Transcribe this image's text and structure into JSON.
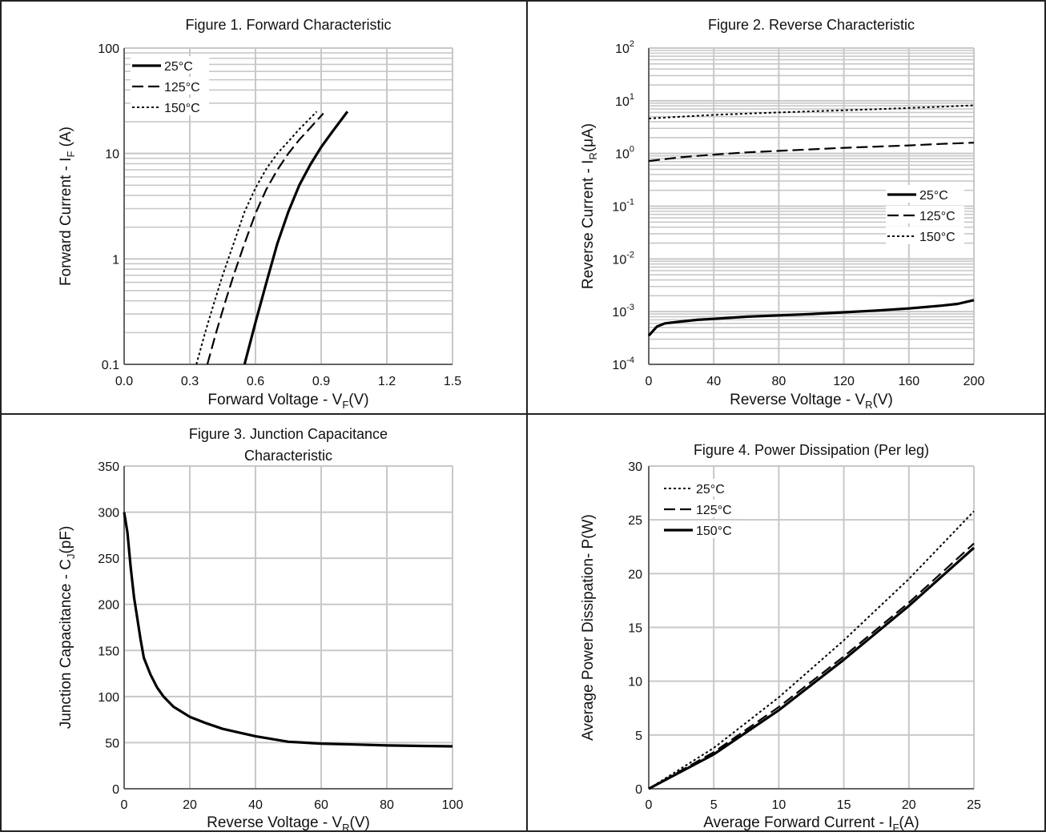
{
  "chart_data": [
    {
      "id": "fig1",
      "type": "line",
      "title": "Figure 1. Forward Characteristic",
      "xlabel": {
        "main": "Forward Voltage - V",
        "sub": "F",
        "tail": "(V)"
      },
      "ylabel": {
        "main": "Forward Current - I",
        "sub": "F",
        "tail": " (A)"
      },
      "xscale": "linear",
      "yscale": "log",
      "xlim": [
        0.0,
        1.5
      ],
      "ylim": [
        0.1,
        100
      ],
      "xticks": [
        0.0,
        0.3,
        0.6,
        0.9,
        1.2,
        1.5
      ],
      "xtick_labels": [
        "0.0",
        "0.3",
        "0.6",
        "0.9",
        "1.2",
        "1.5"
      ],
      "yticks": [
        0.1,
        1,
        10,
        100
      ],
      "ytick_labels": [
        "0.1",
        "1",
        "10",
        "100"
      ],
      "legend_position": "top-left",
      "series": [
        {
          "name": "25°C",
          "style": "solid",
          "x": [
            0.55,
            0.6,
            0.65,
            0.7,
            0.75,
            0.8,
            0.85,
            0.9,
            0.95,
            1.02
          ],
          "y": [
            0.1,
            0.25,
            0.6,
            1.4,
            2.8,
            5.0,
            7.8,
            11.5,
            16,
            25
          ]
        },
        {
          "name": "125°C",
          "style": "dashed",
          "x": [
            0.38,
            0.42,
            0.46,
            0.5,
            0.55,
            0.6,
            0.65,
            0.7,
            0.75,
            0.8,
            0.85,
            0.91
          ],
          "y": [
            0.1,
            0.2,
            0.38,
            0.7,
            1.4,
            2.7,
            4.6,
            7.0,
            10,
            13.5,
            17.5,
            24
          ]
        },
        {
          "name": "150°C",
          "style": "dotted",
          "x": [
            0.33,
            0.37,
            0.41,
            0.45,
            0.5,
            0.55,
            0.6,
            0.65,
            0.7,
            0.75,
            0.8,
            0.88
          ],
          "y": [
            0.1,
            0.2,
            0.38,
            0.7,
            1.4,
            2.8,
            4.7,
            7.2,
            10,
            13,
            17,
            25
          ]
        }
      ]
    },
    {
      "id": "fig2",
      "type": "line",
      "title": "Figure 2. Reverse Characteristic",
      "xlabel": {
        "main": "Reverse Voltage - V",
        "sub": "R",
        "tail": "(V)"
      },
      "ylabel": {
        "main": "Reverse Current - I",
        "sub": "R",
        "tail": "(μA)"
      },
      "xscale": "linear",
      "yscale": "log",
      "xlim": [
        0,
        200
      ],
      "ylim": [
        0.0001,
        100
      ],
      "xticks": [
        0,
        40,
        80,
        120,
        160,
        200
      ],
      "xtick_labels": [
        "0",
        "40",
        "80",
        "120",
        "160",
        "200"
      ],
      "yticks": [
        0.0001,
        0.001,
        0.01,
        0.1,
        1,
        10,
        100
      ],
      "ytick_labels": [
        {
          "base": "10",
          "exp": "-4"
        },
        {
          "base": "10",
          "exp": "-3"
        },
        {
          "base": "10",
          "exp": "-2"
        },
        {
          "base": "10",
          "exp": "-1"
        },
        {
          "base": "10",
          "exp": "0"
        },
        {
          "base": "10",
          "exp": "1"
        },
        {
          "base": "10",
          "exp": "2"
        }
      ],
      "legend_position": "middle-right",
      "series": [
        {
          "name": "25°C",
          "style": "solid",
          "x": [
            0,
            5,
            10,
            20,
            30,
            40,
            60,
            80,
            100,
            120,
            140,
            160,
            180,
            190,
            200
          ],
          "y": [
            0.00035,
            0.00052,
            0.0006,
            0.00065,
            0.0007,
            0.00073,
            0.0008,
            0.00085,
            0.0009,
            0.00097,
            0.00105,
            0.00115,
            0.0013,
            0.0014,
            0.00165
          ]
        },
        {
          "name": "125°C",
          "style": "dashed",
          "x": [
            0,
            20,
            40,
            60,
            80,
            100,
            120,
            140,
            160,
            180,
            200
          ],
          "y": [
            0.72,
            0.85,
            0.95,
            1.05,
            1.12,
            1.2,
            1.28,
            1.35,
            1.42,
            1.52,
            1.6
          ]
        },
        {
          "name": "150°C",
          "style": "dotted",
          "x": [
            0,
            20,
            40,
            60,
            80,
            100,
            120,
            140,
            160,
            180,
            200
          ],
          "y": [
            4.6,
            5.0,
            5.4,
            5.7,
            6.0,
            6.3,
            6.6,
            6.9,
            7.3,
            7.7,
            8.2
          ]
        }
      ]
    },
    {
      "id": "fig3",
      "type": "line",
      "title": "Figure 3. Junction Capacitance",
      "title_line2": "Characteristic",
      "xlabel": {
        "main": "Reverse Voltage - V",
        "sub": "R",
        "tail": "(V)"
      },
      "ylabel": {
        "main": "Junction Capacitance - C",
        "sub": "J",
        "tail": "(pF)"
      },
      "xscale": "linear",
      "yscale": "linear",
      "xlim": [
        0,
        100
      ],
      "ylim": [
        0,
        350
      ],
      "xticks": [
        0,
        20,
        40,
        60,
        80,
        100
      ],
      "xtick_labels": [
        "0",
        "20",
        "40",
        "60",
        "80",
        "100"
      ],
      "yticks": [
        0,
        50,
        100,
        150,
        200,
        250,
        300,
        350
      ],
      "ytick_labels": [
        "0",
        "50",
        "100",
        "150",
        "200",
        "250",
        "300",
        "350"
      ],
      "legend_position": "none",
      "series": [
        {
          "name": "",
          "style": "solid",
          "x": [
            0,
            1,
            2,
            3,
            4,
            5,
            6,
            8,
            10,
            12,
            15,
            20,
            25,
            30,
            40,
            50,
            60,
            70,
            80,
            90,
            100
          ],
          "y": [
            300,
            278,
            240,
            208,
            185,
            162,
            142,
            124,
            110,
            100,
            89,
            78,
            71,
            65,
            57,
            51,
            49,
            48,
            47,
            46.5,
            46
          ]
        }
      ]
    },
    {
      "id": "fig4",
      "type": "line",
      "title": "Figure 4. Power Dissipation (Per leg)",
      "xlabel": {
        "main": "Average Forward Current - I",
        "sub": "F",
        "tail": "(A)"
      },
      "ylabel": {
        "main": "Average Power Dissipation- P(W)",
        "sub": "",
        "tail": ""
      },
      "xscale": "linear",
      "yscale": "linear",
      "xlim": [
        0,
        25
      ],
      "ylim": [
        0,
        30
      ],
      "xticks": [
        0,
        5,
        10,
        15,
        20,
        25
      ],
      "xtick_labels": [
        "0",
        "5",
        "10",
        "15",
        "20",
        "25"
      ],
      "yticks": [
        0,
        5,
        10,
        15,
        20,
        25,
        30
      ],
      "ytick_labels": [
        "0",
        "5",
        "10",
        "15",
        "20",
        "25",
        "30"
      ],
      "legend_position": "top-left",
      "series": [
        {
          "name": "25°C",
          "style": "dotted",
          "x": [
            0,
            5,
            10,
            15,
            20,
            25
          ],
          "y": [
            0,
            3.8,
            8.5,
            13.8,
            19.5,
            25.8
          ]
        },
        {
          "name": "125°C",
          "style": "dashed",
          "x": [
            0,
            5,
            10,
            15,
            20,
            25
          ],
          "y": [
            0,
            3.4,
            7.6,
            12.3,
            17.3,
            22.8
          ]
        },
        {
          "name": "150°C",
          "style": "solid",
          "x": [
            0,
            5,
            10,
            15,
            20,
            25
          ],
          "y": [
            0,
            3.2,
            7.3,
            12.0,
            17.0,
            22.4
          ]
        }
      ]
    }
  ]
}
